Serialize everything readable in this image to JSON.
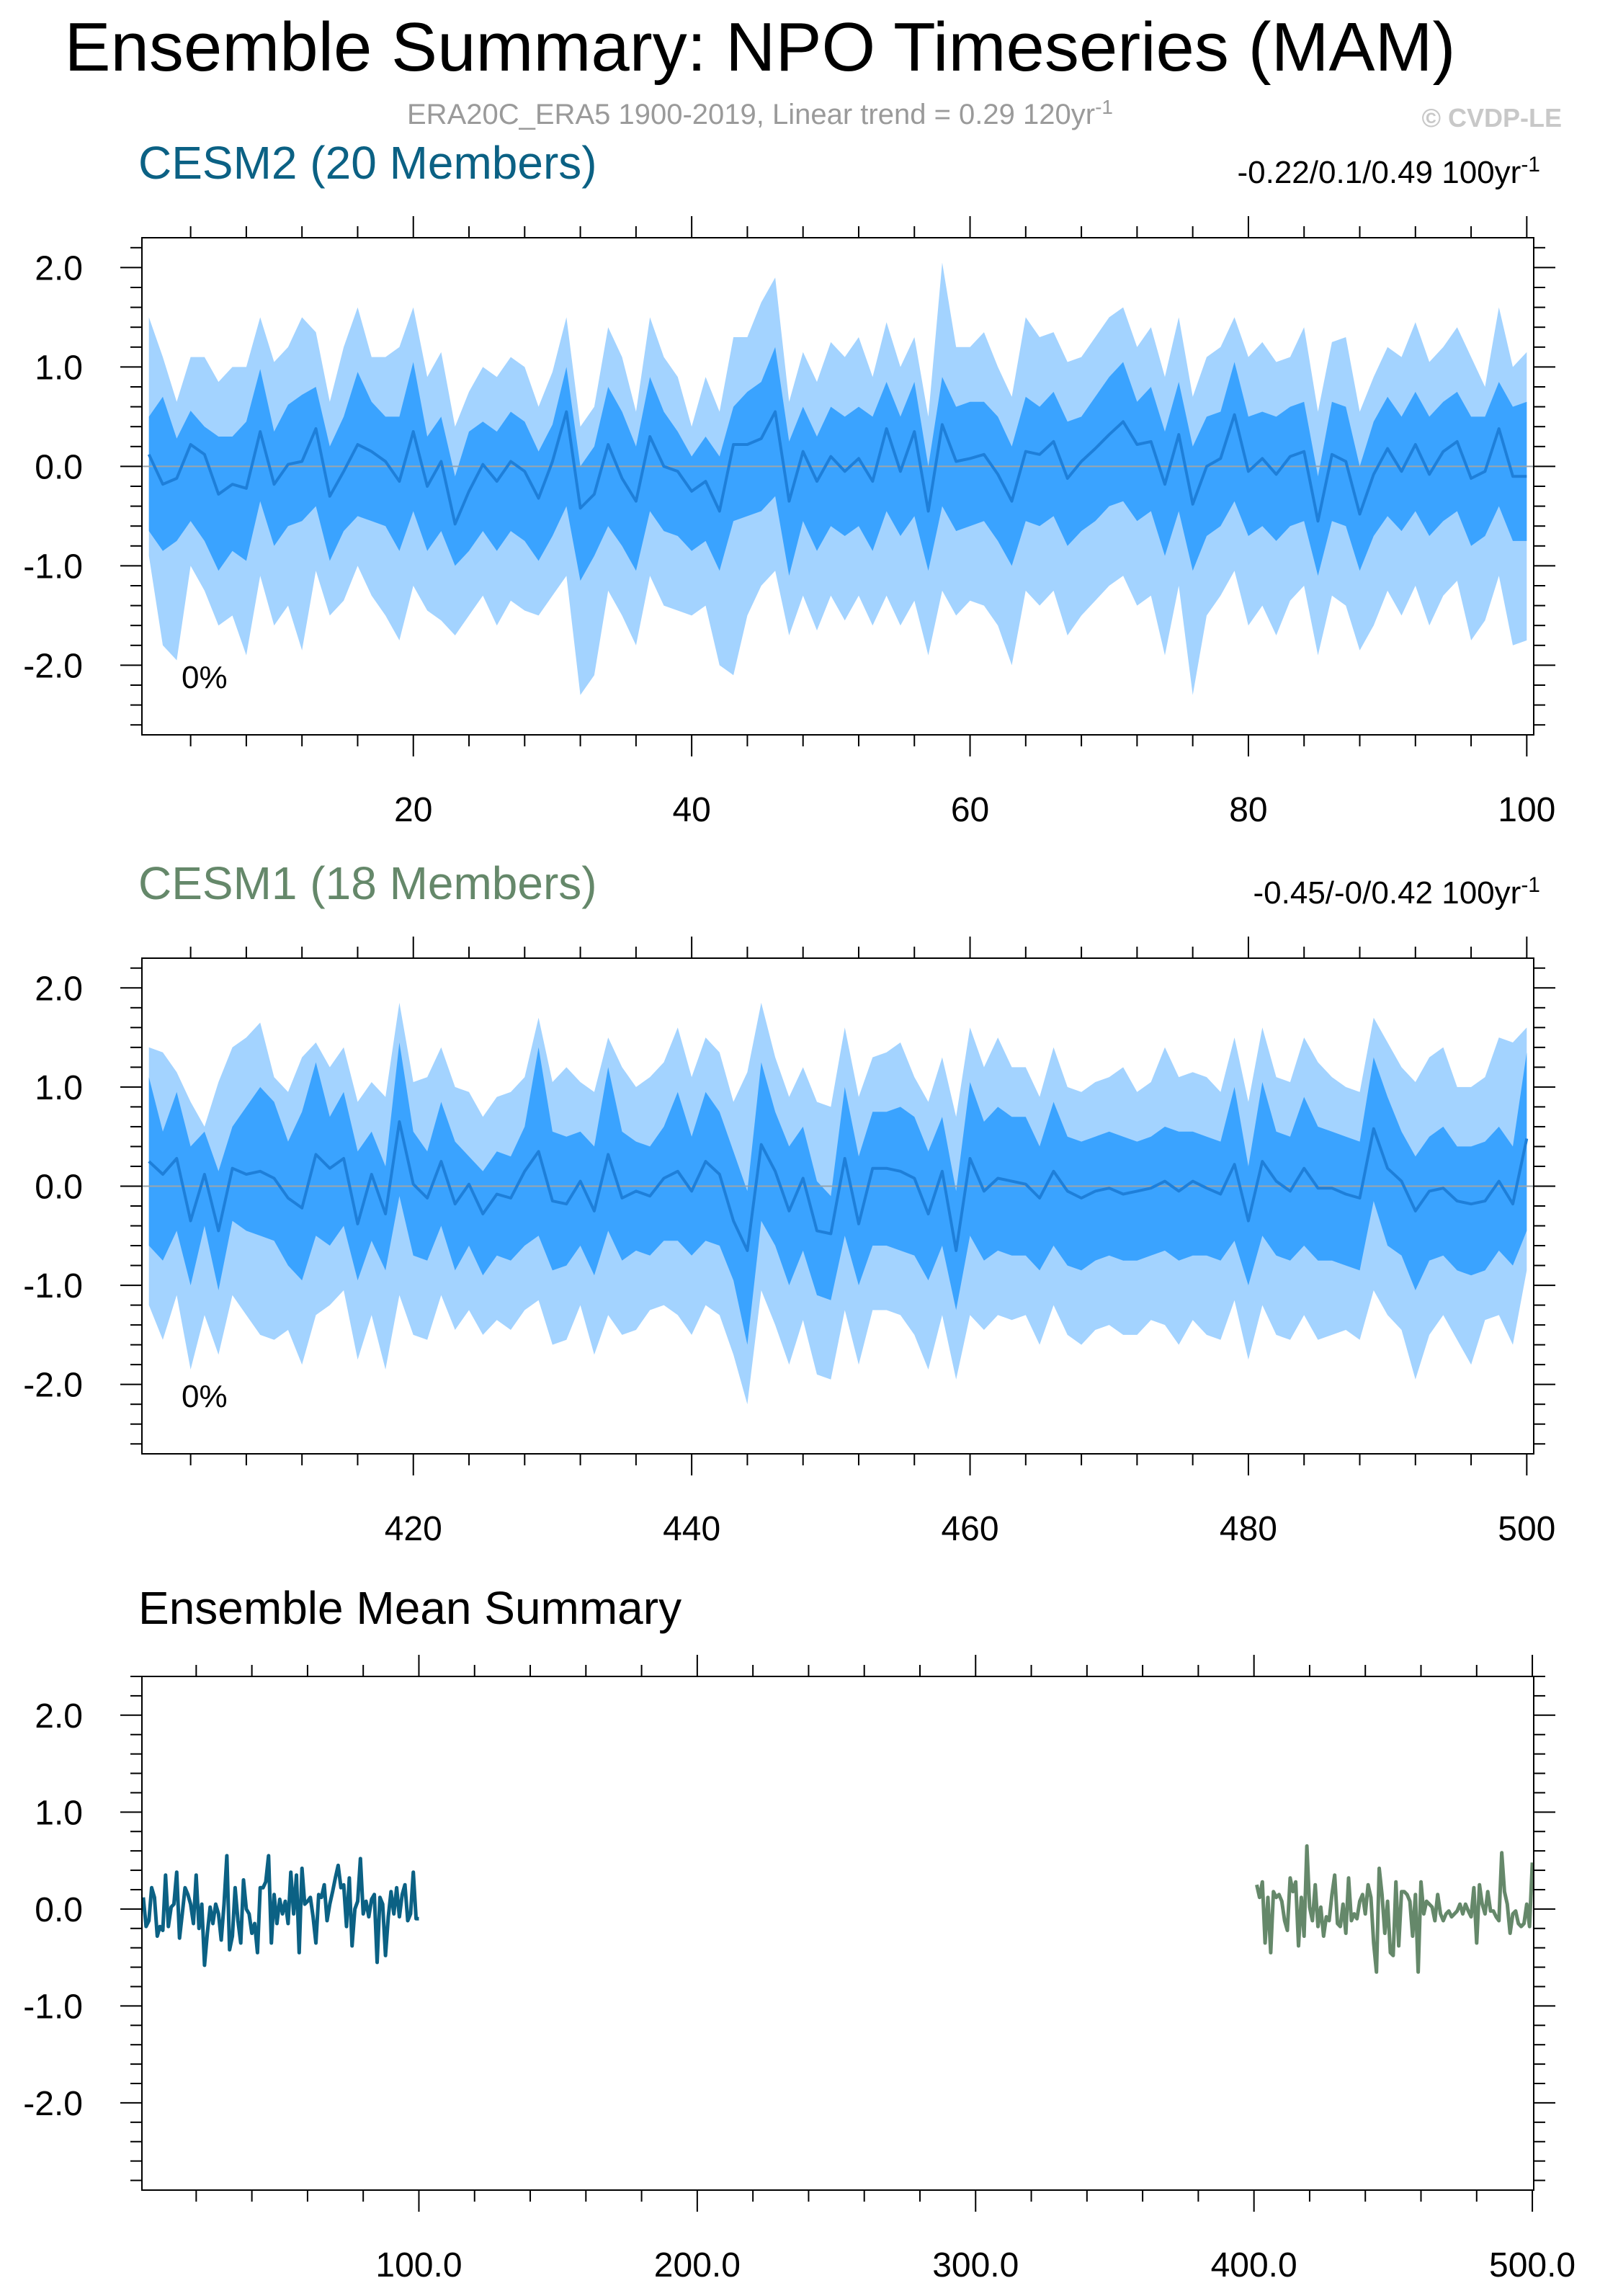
{
  "figure": {
    "title": "Ensemble Summary: NPO Timeseries (MAM)",
    "subtitle": "ERA20C_ERA5 1900-2019, Linear trend = 0.29 120yr",
    "subtitle_sup": "-1",
    "watermark": "© CVDP-LE"
  },
  "colors": {
    "outer_band": "#a3d3ff",
    "inner_band": "#3aa3ff",
    "ensemble_mean_line": "#1e7fd9",
    "cesm2": "#0b6184",
    "cesm1": "#65886a",
    "zero_line": "#9aa5ad",
    "axis": "#000000"
  },
  "chart_data": [
    {
      "type": "area",
      "name": "cesm2-panel",
      "title": "CESM2 (20 Members)",
      "trend_text": "-0.22/0.1/0.49 100yr",
      "trend_sup": "-1",
      "percent_label": "0%",
      "xlim": [
        0.5,
        100.5
      ],
      "ylim": [
        -2.7,
        2.3
      ],
      "xticks": [
        20,
        40,
        60,
        80,
        100
      ],
      "xtick_labels": [
        "20",
        "40",
        "60",
        "80",
        "100"
      ],
      "yticks": [
        2.0,
        1.0,
        0.0,
        -1.0,
        -2.0
      ],
      "ytick_labels": [
        "2.0",
        "1.0",
        "0.0",
        "-1.0",
        "-2.0"
      ],
      "x_start": 1,
      "mean": [
        0.12,
        -0.18,
        -0.12,
        0.22,
        0.12,
        -0.28,
        -0.18,
        -0.22,
        0.35,
        -0.18,
        0.02,
        0.05,
        0.38,
        -0.3,
        -0.05,
        0.22,
        0.15,
        0.05,
        -0.15,
        0.35,
        -0.2,
        0.05,
        -0.58,
        -0.25,
        0.02,
        -0.15,
        0.05,
        -0.05,
        -0.32,
        0.05,
        0.55,
        -0.42,
        -0.28,
        0.22,
        -0.12,
        -0.35,
        0.3,
        0.0,
        -0.05,
        -0.25,
        -0.15,
        -0.45,
        0.22,
        0.22,
        0.28,
        0.55,
        -0.35,
        0.15,
        -0.15,
        0.1,
        -0.05,
        0.08,
        -0.15,
        0.38,
        -0.05,
        0.35,
        -0.45,
        0.42,
        0.05,
        0.08,
        0.12,
        -0.08,
        -0.35,
        0.15,
        0.12,
        0.25,
        -0.12,
        0.05,
        0.18,
        0.32,
        0.45,
        0.22,
        0.25,
        -0.18,
        0.32,
        -0.38,
        0.0,
        0.08,
        0.52,
        -0.05,
        0.08,
        -0.08,
        0.1,
        0.15,
        -0.55,
        0.12,
        0.05,
        -0.48,
        -0.08,
        0.18,
        -0.05,
        0.22,
        -0.08,
        0.15,
        0.25,
        -0.12,
        -0.05,
        0.38,
        -0.1,
        -0.1
      ],
      "inner_upper": [
        0.5,
        0.7,
        0.28,
        0.56,
        0.4,
        0.3,
        0.3,
        0.45,
        0.98,
        0.35,
        0.62,
        0.72,
        0.8,
        0.2,
        0.5,
        0.95,
        0.65,
        0.5,
        0.5,
        1.05,
        0.3,
        0.5,
        -0.1,
        0.35,
        0.45,
        0.35,
        0.55,
        0.45,
        0.15,
        0.42,
        1.0,
        0.0,
        0.2,
        0.8,
        0.55,
        0.2,
        0.9,
        0.55,
        0.35,
        0.1,
        0.3,
        0.1,
        0.6,
        0.75,
        0.85,
        1.2,
        0.25,
        0.6,
        0.3,
        0.6,
        0.5,
        0.6,
        0.5,
        0.85,
        0.5,
        0.85,
        0.0,
        0.9,
        0.6,
        0.65,
        0.65,
        0.5,
        0.2,
        0.7,
        0.6,
        0.75,
        0.45,
        0.5,
        0.7,
        0.9,
        1.05,
        0.65,
        0.8,
        0.35,
        0.85,
        0.2,
        0.5,
        0.55,
        1.05,
        0.5,
        0.55,
        0.5,
        0.6,
        0.65,
        -0.1,
        0.65,
        0.6,
        0.0,
        0.45,
        0.7,
        0.5,
        0.75,
        0.5,
        0.65,
        0.75,
        0.5,
        0.5,
        0.85,
        0.6,
        0.65
      ],
      "inner_lower": [
        -0.65,
        -0.85,
        -0.75,
        -0.55,
        -0.75,
        -1.05,
        -0.85,
        -0.95,
        -0.35,
        -0.8,
        -0.6,
        -0.55,
        -0.4,
        -0.95,
        -0.65,
        -0.5,
        -0.55,
        -0.6,
        -0.85,
        -0.45,
        -0.85,
        -0.65,
        -1.0,
        -0.85,
        -0.65,
        -0.85,
        -0.65,
        -0.75,
        -0.95,
        -0.7,
        -0.4,
        -1.15,
        -0.9,
        -0.6,
        -0.8,
        -1.05,
        -0.45,
        -0.65,
        -0.7,
        -0.85,
        -0.75,
        -1.05,
        -0.55,
        -0.5,
        -0.45,
        -0.3,
        -1.1,
        -0.55,
        -0.85,
        -0.6,
        -0.7,
        -0.6,
        -0.85,
        -0.45,
        -0.7,
        -0.5,
        -1.05,
        -0.4,
        -0.65,
        -0.6,
        -0.55,
        -0.75,
        -1.0,
        -0.55,
        -0.6,
        -0.5,
        -0.8,
        -0.65,
        -0.55,
        -0.4,
        -0.35,
        -0.55,
        -0.45,
        -0.9,
        -0.45,
        -1.05,
        -0.7,
        -0.6,
        -0.35,
        -0.7,
        -0.6,
        -0.75,
        -0.6,
        -0.55,
        -1.1,
        -0.55,
        -0.6,
        -1.05,
        -0.7,
        -0.5,
        -0.65,
        -0.45,
        -0.7,
        -0.55,
        -0.45,
        -0.8,
        -0.7,
        -0.4,
        -0.75,
        -0.75
      ],
      "outer_upper": [
        1.5,
        1.1,
        0.65,
        1.1,
        1.1,
        0.85,
        1.0,
        1.0,
        1.5,
        1.05,
        1.2,
        1.5,
        1.35,
        0.65,
        1.2,
        1.6,
        1.1,
        1.1,
        1.2,
        1.6,
        0.9,
        1.15,
        0.4,
        0.75,
        1.0,
        0.9,
        1.1,
        1.0,
        0.6,
        0.95,
        1.5,
        0.4,
        0.6,
        1.4,
        1.1,
        0.55,
        1.5,
        1.1,
        0.9,
        0.4,
        0.9,
        0.55,
        1.3,
        1.3,
        1.65,
        1.9,
        0.65,
        1.15,
        0.85,
        1.25,
        1.1,
        1.3,
        0.9,
        1.45,
        1.0,
        1.3,
        0.5,
        2.05,
        1.2,
        1.2,
        1.35,
        1.0,
        0.7,
        1.5,
        1.3,
        1.35,
        1.05,
        1.1,
        1.3,
        1.5,
        1.6,
        1.2,
        1.4,
        0.9,
        1.5,
        0.7,
        1.1,
        1.2,
        1.5,
        1.1,
        1.25,
        1.05,
        1.1,
        1.4,
        0.55,
        1.25,
        1.3,
        0.55,
        0.9,
        1.2,
        1.1,
        1.45,
        1.05,
        1.2,
        1.4,
        1.1,
        0.8,
        1.6,
        1.0,
        1.15
      ],
      "outer_lower": [
        -0.9,
        -1.8,
        -1.95,
        -1.0,
        -1.25,
        -1.6,
        -1.5,
        -1.9,
        -1.1,
        -1.6,
        -1.4,
        -1.85,
        -1.05,
        -1.5,
        -1.35,
        -1.0,
        -1.3,
        -1.5,
        -1.75,
        -1.2,
        -1.45,
        -1.55,
        -1.7,
        -1.5,
        -1.3,
        -1.6,
        -1.35,
        -1.45,
        -1.5,
        -1.3,
        -1.1,
        -2.3,
        -2.1,
        -1.25,
        -1.5,
        -1.8,
        -1.1,
        -1.4,
        -1.45,
        -1.5,
        -1.4,
        -2.0,
        -2.1,
        -1.5,
        -1.2,
        -1.05,
        -1.7,
        -1.3,
        -1.65,
        -1.3,
        -1.55,
        -1.3,
        -1.6,
        -1.3,
        -1.6,
        -1.35,
        -1.9,
        -1.25,
        -1.5,
        -1.35,
        -1.4,
        -1.6,
        -2.0,
        -1.25,
        -1.4,
        -1.25,
        -1.7,
        -1.5,
        -1.35,
        -1.2,
        -1.1,
        -1.4,
        -1.3,
        -1.9,
        -1.2,
        -2.3,
        -1.5,
        -1.3,
        -1.05,
        -1.6,
        -1.4,
        -1.7,
        -1.35,
        -1.2,
        -1.9,
        -1.3,
        -1.4,
        -1.85,
        -1.6,
        -1.25,
        -1.5,
        -1.2,
        -1.6,
        -1.3,
        -1.15,
        -1.75,
        -1.55,
        -1.1,
        -1.8,
        -1.75
      ]
    },
    {
      "type": "area",
      "name": "cesm1-panel",
      "title": "CESM1 (18 Members)",
      "trend_text": "-0.45/-0/0.42 100yr",
      "trend_sup": "-1",
      "percent_label": "0%",
      "xlim": [
        400.5,
        500.5
      ],
      "ylim": [
        -2.7,
        2.3
      ],
      "xticks": [
        420,
        440,
        460,
        480,
        500
      ],
      "xtick_labels": [
        "420",
        "440",
        "460",
        "480",
        "500"
      ],
      "yticks": [
        2.0,
        1.0,
        0.0,
        -1.0,
        -2.0
      ],
      "ytick_labels": [
        "2.0",
        "1.0",
        "0.0",
        "-1.0",
        "-2.0"
      ],
      "x_start": 401,
      "mean": [
        0.25,
        0.12,
        0.28,
        -0.35,
        0.12,
        -0.45,
        0.18,
        0.12,
        0.15,
        0.08,
        -0.12,
        -0.22,
        0.32,
        0.18,
        0.28,
        -0.38,
        0.12,
        -0.28,
        0.65,
        0.02,
        -0.12,
        0.25,
        -0.18,
        0.02,
        -0.28,
        -0.08,
        -0.12,
        0.15,
        0.35,
        -0.15,
        -0.18,
        0.05,
        -0.25,
        0.32,
        -0.12,
        -0.05,
        -0.1,
        0.08,
        0.15,
        -0.05,
        0.25,
        0.12,
        -0.35,
        -0.65,
        0.42,
        0.15,
        -0.25,
        0.08,
        -0.45,
        -0.48,
        0.28,
        -0.38,
        0.18,
        0.18,
        0.15,
        0.08,
        -0.28,
        0.15,
        -0.65,
        0.28,
        -0.05,
        0.08,
        0.05,
        0.02,
        -0.12,
        0.15,
        -0.05,
        -0.12,
        -0.05,
        -0.02,
        -0.08,
        -0.05,
        -0.02,
        0.05,
        -0.05,
        0.05,
        -0.02,
        -0.08,
        0.22,
        -0.35,
        0.25,
        0.05,
        -0.05,
        0.18,
        -0.02,
        -0.02,
        -0.08,
        -0.12,
        0.58,
        0.18,
        0.05,
        -0.25,
        -0.05,
        -0.02,
        -0.15,
        -0.18,
        -0.15,
        0.05,
        -0.18,
        0.48
      ],
      "inner_upper": [
        1.1,
        0.55,
        0.95,
        0.4,
        0.55,
        0.15,
        0.6,
        0.8,
        1.0,
        0.85,
        0.45,
        0.75,
        1.25,
        0.7,
        0.95,
        0.35,
        0.55,
        0.2,
        1.45,
        0.55,
        0.35,
        0.85,
        0.45,
        0.3,
        0.15,
        0.35,
        0.3,
        0.6,
        1.4,
        0.55,
        0.5,
        0.55,
        0.4,
        1.2,
        0.55,
        0.45,
        0.4,
        0.6,
        0.95,
        0.5,
        0.95,
        0.75,
        0.35,
        -0.05,
        1.25,
        0.75,
        0.4,
        0.6,
        0.05,
        -0.1,
        1.0,
        0.3,
        0.75,
        0.75,
        0.8,
        0.7,
        0.35,
        0.7,
        -0.05,
        1.05,
        0.65,
        0.8,
        0.7,
        0.7,
        0.4,
        0.85,
        0.5,
        0.45,
        0.5,
        0.55,
        0.5,
        0.45,
        0.5,
        0.6,
        0.55,
        0.55,
        0.5,
        0.45,
        1.0,
        0.2,
        1.05,
        0.55,
        0.5,
        0.9,
        0.6,
        0.55,
        0.5,
        0.45,
        1.3,
        0.9,
        0.55,
        0.3,
        0.5,
        0.6,
        0.4,
        0.4,
        0.45,
        0.6,
        0.4,
        1.35
      ],
      "inner_lower": [
        -0.6,
        -0.75,
        -0.45,
        -1.0,
        -0.4,
        -1.05,
        -0.35,
        -0.45,
        -0.5,
        -0.55,
        -0.8,
        -0.95,
        -0.5,
        -0.6,
        -0.4,
        -0.95,
        -0.55,
        -0.85,
        -0.1,
        -0.7,
        -0.75,
        -0.4,
        -0.85,
        -0.6,
        -0.9,
        -0.7,
        -0.75,
        -0.6,
        -0.5,
        -0.85,
        -0.8,
        -0.6,
        -0.9,
        -0.45,
        -0.75,
        -0.65,
        -0.7,
        -0.55,
        -0.55,
        -0.7,
        -0.55,
        -0.6,
        -0.95,
        -1.6,
        -0.35,
        -0.6,
        -1.0,
        -0.65,
        -1.1,
        -1.15,
        -0.5,
        -1.0,
        -0.6,
        -0.6,
        -0.65,
        -0.7,
        -0.95,
        -0.6,
        -1.25,
        -0.5,
        -0.75,
        -0.65,
        -0.7,
        -0.7,
        -0.85,
        -0.6,
        -0.8,
        -0.85,
        -0.75,
        -0.7,
        -0.75,
        -0.75,
        -0.7,
        -0.65,
        -0.75,
        -0.7,
        -0.7,
        -0.75,
        -0.55,
        -1.0,
        -0.5,
        -0.7,
        -0.75,
        -0.6,
        -0.75,
        -0.75,
        -0.8,
        -0.85,
        -0.15,
        -0.6,
        -0.7,
        -1.05,
        -0.75,
        -0.7,
        -0.85,
        -0.9,
        -0.85,
        -0.65,
        -0.8,
        -0.45
      ],
      "outer_upper": [
        1.4,
        1.35,
        1.15,
        0.85,
        0.6,
        1.05,
        1.4,
        1.5,
        1.65,
        1.1,
        0.95,
        1.3,
        1.45,
        1.2,
        1.4,
        0.85,
        1.05,
        0.9,
        1.85,
        1.05,
        1.1,
        1.4,
        1.0,
        0.95,
        0.7,
        0.9,
        0.95,
        1.1,
        1.7,
        1.05,
        1.2,
        1.05,
        0.95,
        1.5,
        1.2,
        1.0,
        1.1,
        1.25,
        1.6,
        1.1,
        1.5,
        1.35,
        0.85,
        1.15,
        1.85,
        1.3,
        0.9,
        1.2,
        0.85,
        0.8,
        1.6,
        0.9,
        1.3,
        1.35,
        1.45,
        1.1,
        0.85,
        1.3,
        0.7,
        1.6,
        1.2,
        1.5,
        1.2,
        1.2,
        0.9,
        1.4,
        1.0,
        0.95,
        1.05,
        1.1,
        1.2,
        0.95,
        1.05,
        1.4,
        1.1,
        1.15,
        1.1,
        0.95,
        1.5,
        0.85,
        1.6,
        1.1,
        1.05,
        1.5,
        1.25,
        1.1,
        1.0,
        0.95,
        1.7,
        1.45,
        1.2,
        1.05,
        1.3,
        1.4,
        1.0,
        1.0,
        1.1,
        1.5,
        1.45,
        1.6
      ],
      "outer_lower": [
        -1.2,
        -1.55,
        -1.1,
        -1.85,
        -1.3,
        -1.7,
        -1.1,
        -1.3,
        -1.5,
        -1.55,
        -1.45,
        -1.8,
        -1.3,
        -1.2,
        -1.05,
        -1.75,
        -1.3,
        -1.85,
        -1.1,
        -1.5,
        -1.55,
        -1.1,
        -1.45,
        -1.25,
        -1.5,
        -1.35,
        -1.45,
        -1.25,
        -1.15,
        -1.6,
        -1.55,
        -1.2,
        -1.7,
        -1.3,
        -1.5,
        -1.45,
        -1.25,
        -1.2,
        -1.3,
        -1.5,
        -1.2,
        -1.3,
        -1.7,
        -2.2,
        -1.05,
        -1.4,
        -1.8,
        -1.35,
        -1.9,
        -1.95,
        -1.25,
        -1.8,
        -1.25,
        -1.25,
        -1.3,
        -1.5,
        -1.85,
        -1.3,
        -1.95,
        -1.3,
        -1.45,
        -1.3,
        -1.35,
        -1.3,
        -1.6,
        -1.2,
        -1.5,
        -1.6,
        -1.45,
        -1.4,
        -1.5,
        -1.5,
        -1.35,
        -1.4,
        -1.6,
        -1.35,
        -1.5,
        -1.55,
        -1.15,
        -1.75,
        -1.2,
        -1.5,
        -1.55,
        -1.3,
        -1.55,
        -1.5,
        -1.45,
        -1.55,
        -1.05,
        -1.3,
        -1.45,
        -1.95,
        -1.5,
        -1.3,
        -1.55,
        -1.8,
        -1.35,
        -1.3,
        -1.6,
        -0.85
      ]
    },
    {
      "type": "line",
      "name": "ensemble-mean-summary",
      "title": "Ensemble Mean Summary",
      "xlim": [
        0.5,
        500.5
      ],
      "ylim": [
        -2.9,
        2.4
      ],
      "xticks": [
        100,
        200,
        300,
        400,
        500
      ],
      "xtick_labels": [
        "100.0",
        "200.0",
        "300.0",
        "400.0",
        "500.0"
      ],
      "yticks": [
        2.0,
        1.0,
        0.0,
        -1.0,
        -2.0
      ],
      "ytick_labels": [
        "2.0",
        "1.0",
        "0.0",
        "-1.0",
        "-2.0"
      ],
      "series_refs": [
        {
          "source_panel": 0,
          "color_key": "cesm2"
        },
        {
          "source_panel": 1,
          "color_key": "cesm1"
        }
      ]
    }
  ]
}
